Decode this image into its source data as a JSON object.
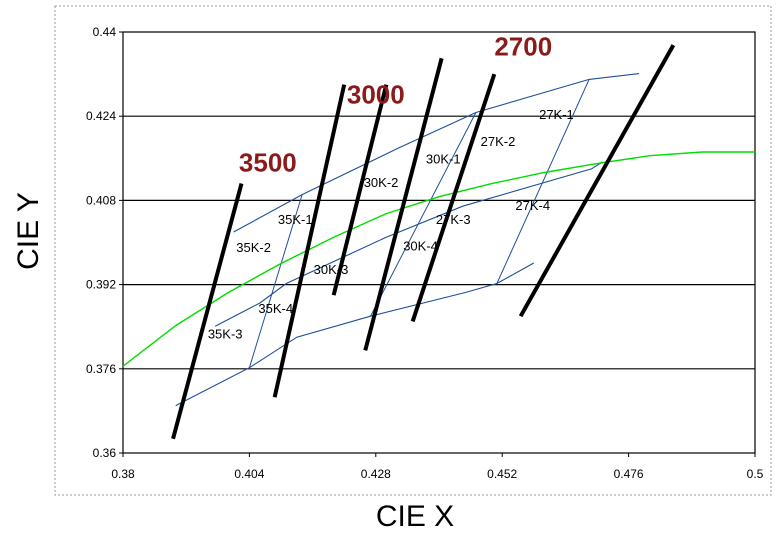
{
  "chart_data": {
    "type": "line",
    "xlabel": "CIE X",
    "ylabel": "CIE Y",
    "xlim": [
      0.38,
      0.5
    ],
    "ylim": [
      0.36,
      0.44
    ],
    "x_ticks": [
      "0.38",
      "0.404",
      "0.428",
      "0.452",
      "0.476",
      "0.5"
    ],
    "y_ticks": [
      "0.36",
      "0.376",
      "0.392",
      "0.408",
      "0.424",
      "0.44"
    ],
    "y_grid": true,
    "colors": {
      "blackbody": "#00dd00",
      "boundary": "#1f4e9a",
      "isotherm": "#000000",
      "cct_label": "#8b1a1a"
    },
    "blackbody_locus": [
      [
        0.38,
        0.3765
      ],
      [
        0.39,
        0.3842
      ],
      [
        0.4,
        0.3905
      ],
      [
        0.41,
        0.396
      ],
      [
        0.42,
        0.401
      ],
      [
        0.43,
        0.4055
      ],
      [
        0.44,
        0.4087
      ],
      [
        0.45,
        0.4112
      ],
      [
        0.46,
        0.4133
      ],
      [
        0.47,
        0.415
      ],
      [
        0.48,
        0.4165
      ],
      [
        0.49,
        0.4172
      ],
      [
        0.5,
        0.4172
      ]
    ],
    "isotherms": [
      {
        "cct": "3500",
        "from": [
          0.3895,
          0.3627
        ],
        "to": [
          0.4025,
          0.4112
        ]
      },
      {
        "cct": "3000",
        "from": [
          0.4088,
          0.3706
        ],
        "to": [
          0.422,
          0.43
        ]
      },
      {
        "cct": "2700",
        "from": [
          0.426,
          0.3795
        ],
        "to": [
          0.4405,
          0.435
        ]
      }
    ],
    "isotherms_extra": [
      {
        "from": [
          0.42,
          0.39
        ],
        "to": [
          0.43,
          0.43
        ]
      },
      {
        "from": [
          0.435,
          0.385
        ],
        "to": [
          0.4505,
          0.432
        ]
      },
      {
        "from": [
          0.4555,
          0.386
        ],
        "to": [
          0.4845,
          0.4375
        ]
      }
    ],
    "boundaries": [
      {
        "points": [
          [
            0.401,
            0.402
          ],
          [
            0.414,
            0.4091
          ],
          [
            0.432,
            0.4178
          ],
          [
            0.447,
            0.4247
          ],
          [
            0.4685,
            0.431
          ],
          [
            0.478,
            0.4321
          ]
        ]
      },
      {
        "points": [
          [
            0.3975,
            0.3841
          ],
          [
            0.406,
            0.3885
          ],
          [
            0.411,
            0.3922
          ],
          [
            0.43,
            0.401
          ],
          [
            0.4445,
            0.4069
          ],
          [
            0.469,
            0.414
          ],
          [
            0.471,
            0.4153
          ]
        ]
      },
      {
        "points": [
          [
            0.39,
            0.369
          ],
          [
            0.404,
            0.3762
          ],
          [
            0.413,
            0.382
          ],
          [
            0.427,
            0.386
          ],
          [
            0.445,
            0.3905
          ],
          [
            0.451,
            0.3922
          ],
          [
            0.458,
            0.3961
          ]
        ]
      }
    ],
    "quadrant_dividers": [
      [
        [
          0.414,
          0.4091
        ],
        [
          0.404,
          0.3762
        ]
      ],
      [
        [
          0.447,
          0.4247
        ],
        [
          0.427,
          0.386
        ]
      ],
      [
        [
          0.4685,
          0.431
        ],
        [
          0.451,
          0.3922
        ]
      ]
    ],
    "cct_labels": [
      {
        "text": "3500",
        "x": 0.4075,
        "y": 0.4135
      },
      {
        "text": "3000",
        "x": 0.428,
        "y": 0.4264
      },
      {
        "text": "2700",
        "x": 0.456,
        "y": 0.4355
      }
    ],
    "quad_labels": [
      {
        "text": "35K-1",
        "x": 0.4127,
        "y": 0.4035
      },
      {
        "text": "35K-2",
        "x": 0.4048,
        "y": 0.3982
      },
      {
        "text": "35K-3",
        "x": 0.3994,
        "y": 0.3818
      },
      {
        "text": "35K-4",
        "x": 0.409,
        "y": 0.3866
      },
      {
        "text": "30K-1",
        "x": 0.4408,
        "y": 0.415
      },
      {
        "text": "30K-2",
        "x": 0.429,
        "y": 0.4105
      },
      {
        "text": "30K-3",
        "x": 0.4195,
        "y": 0.394
      },
      {
        "text": "30K-4",
        "x": 0.4365,
        "y": 0.3985
      },
      {
        "text": "27K-1",
        "x": 0.4623,
        "y": 0.4235
      },
      {
        "text": "27K-2",
        "x": 0.4512,
        "y": 0.4183
      },
      {
        "text": "27K-3",
        "x": 0.4427,
        "y": 0.4035
      },
      {
        "text": "27K-4",
        "x": 0.4578,
        "y": 0.4062
      }
    ]
  }
}
